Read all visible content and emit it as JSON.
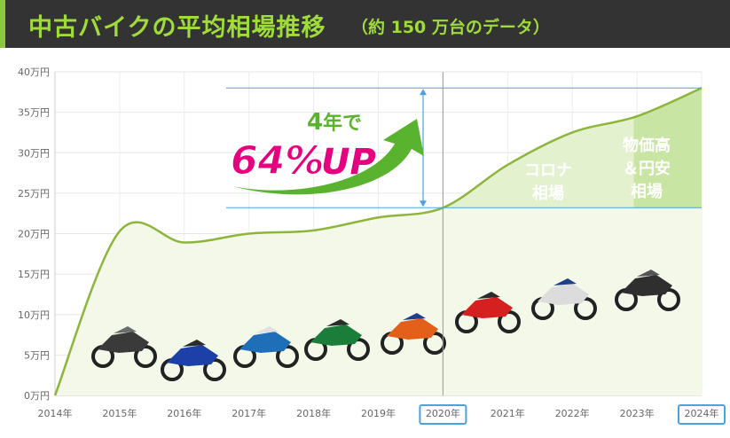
{
  "header": {
    "title": "中古バイクの平均相場推移",
    "subtitle": "（約 150 万台のデータ）"
  },
  "colors": {
    "line": "#8db53c",
    "fill_light": "#f3f8e8",
    "fill_zone_covid": "#e4f1cf",
    "fill_zone_inflation": "#c9e5a3",
    "highlight": "#4aa3df",
    "magenta": "#e6007e",
    "arrow": "#5ab32f"
  },
  "callout": {
    "prefix_num": "4",
    "prefix_text": "年で",
    "percent": "64%",
    "up": "UP"
  },
  "zones": {
    "covid": [
      "コロナ",
      "相場"
    ],
    "inflation": [
      "物価高",
      "＆円安",
      "相場"
    ]
  },
  "chart_data": {
    "type": "area",
    "title": "中古バイクの平均相場推移",
    "subtitle": "（約 150 万台のデータ）",
    "ylim": [
      0,
      40
    ],
    "y_ticks": [
      "0万円",
      "5万円",
      "10万円",
      "15万円",
      "20万円",
      "25万円",
      "30万円",
      "35万円",
      "40万円"
    ],
    "y_tick_values": [
      0,
      5,
      10,
      15,
      20,
      25,
      30,
      35,
      40
    ],
    "categories": [
      "2014年",
      "2015年",
      "2016年",
      "2017年",
      "2018年",
      "2019年",
      "2020年",
      "2021年",
      "2022年",
      "2023年",
      "2024年"
    ],
    "x_values": [
      2014,
      2015,
      2016,
      2017,
      2018,
      2019,
      2020,
      2021,
      2022,
      2023,
      2024
    ],
    "highlighted_categories": [
      "2020年",
      "2024年"
    ],
    "series": [
      {
        "values": [
          0,
          20.3,
          18.9,
          20.0,
          20.4,
          22.0,
          23.2,
          28.5,
          32.5,
          34.5,
          38.0
        ]
      }
    ],
    "grid": true
  }
}
